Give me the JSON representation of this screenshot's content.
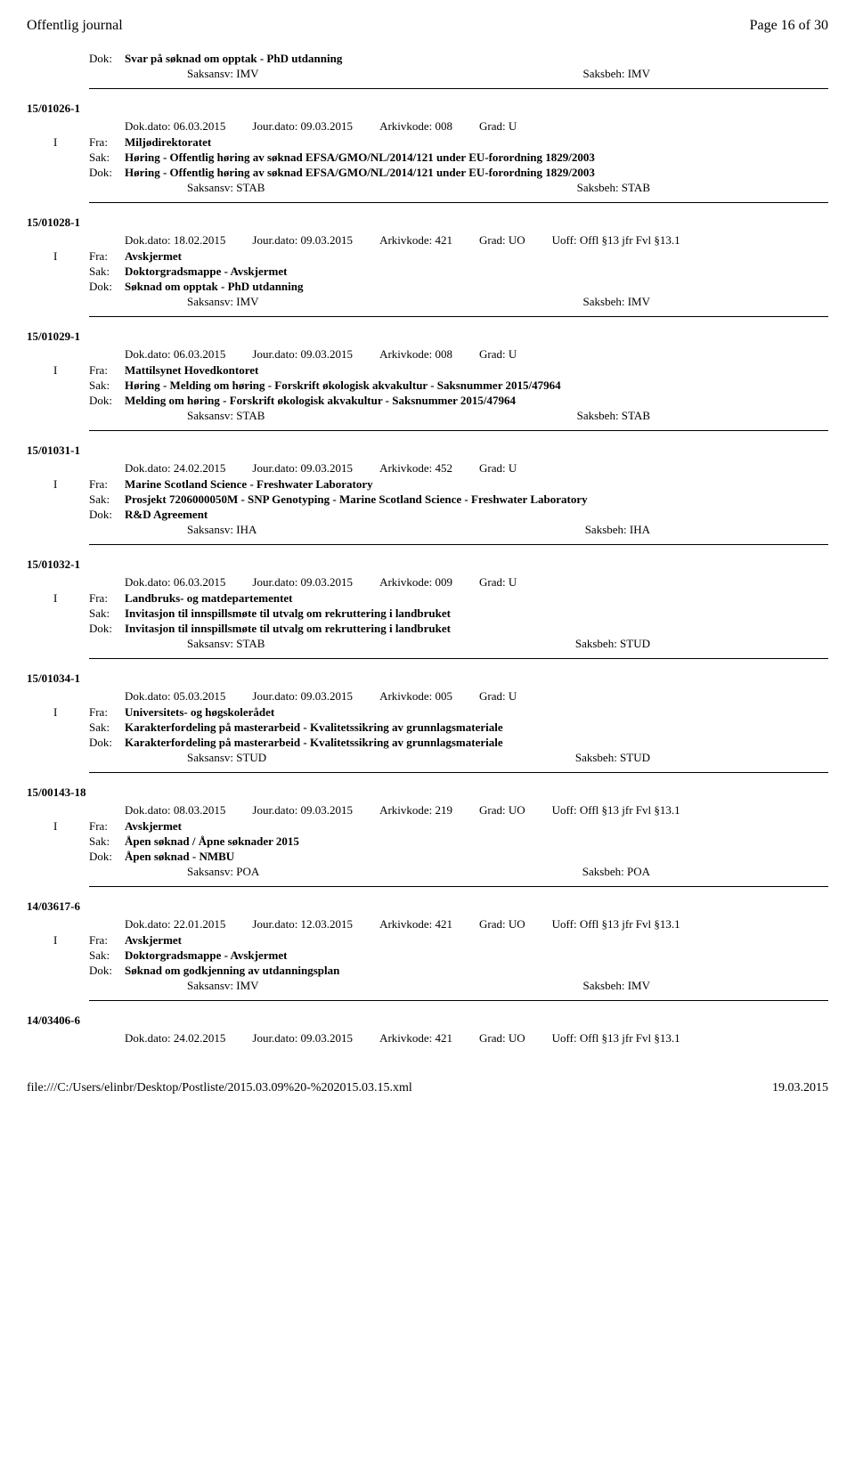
{
  "header": {
    "left": "Offentlig journal",
    "right": "Page 16 of 30"
  },
  "labels": {
    "dok": "Dok:",
    "sak": "Sak:",
    "fra": "Fra:",
    "saksansv": "Saksansv:",
    "saksbeh": "Saksbeh:",
    "dokdato": "Dok.dato:",
    "jourdato": "Jour.dato:",
    "arkivkode": "Arkivkode:",
    "grad": "Grad:",
    "uoff": "Uoff:"
  },
  "first": {
    "dok": "Svar på søknad om opptak - PhD utdanning",
    "saksansv": "IMV",
    "saksbeh": "IMV"
  },
  "records": [
    {
      "ref": "15/01026-1",
      "io": "I",
      "dokdato": "06.03.2015",
      "jourdato": "09.03.2015",
      "arkivkode": "008",
      "grad": "U",
      "uoff": "",
      "fra": "Miljødirektoratet",
      "sak": "Høring - Offentlig høring av søknad EFSA/GMO/NL/2014/121 under EU-forordning 1829/2003",
      "dok": "Høring - Offentlig høring av søknad EFSA/GMO/NL/2014/121 under EU-forordning 1829/2003",
      "saksansv": "STAB",
      "saksbeh": "STAB"
    },
    {
      "ref": "15/01028-1",
      "io": "I",
      "dokdato": "18.02.2015",
      "jourdato": "09.03.2015",
      "arkivkode": "421",
      "grad": "UO",
      "uoff": "Offl §13 jfr Fvl §13.1",
      "fra": "Avskjermet",
      "sak": "Doktorgradsmappe - Avskjermet",
      "dok": "Søknad om opptak - PhD utdanning",
      "saksansv": "IMV",
      "saksbeh": "IMV"
    },
    {
      "ref": "15/01029-1",
      "io": "I",
      "dokdato": "06.03.2015",
      "jourdato": "09.03.2015",
      "arkivkode": "008",
      "grad": "U",
      "uoff": "",
      "fra": "Mattilsynet Hovedkontoret",
      "sak": "Høring - Melding om høring - Forskrift økologisk akvakultur - Saksnummer 2015/47964",
      "dok": "Melding om høring - Forskrift økologisk akvakultur - Saksnummer 2015/47964",
      "saksansv": "STAB",
      "saksbeh": "STAB"
    },
    {
      "ref": "15/01031-1",
      "io": "I",
      "dokdato": "24.02.2015",
      "jourdato": "09.03.2015",
      "arkivkode": "452",
      "grad": "U",
      "uoff": "",
      "fra": "Marine Scotland Science - Freshwater Laboratory",
      "sak": "Prosjekt 7206000050M - SNP Genotyping - Marine Scotland Science - Freshwater Laboratory",
      "dok": "R&D Agreement",
      "saksansv": "IHA",
      "saksbeh": "IHA"
    },
    {
      "ref": "15/01032-1",
      "io": "I",
      "dokdato": "06.03.2015",
      "jourdato": "09.03.2015",
      "arkivkode": "009",
      "grad": "U",
      "uoff": "",
      "fra": "Landbruks- og matdepartementet",
      "sak": "Invitasjon til innspillsmøte til utvalg om rekruttering i landbruket",
      "dok": "Invitasjon til innspillsmøte til utvalg om rekruttering i landbruket",
      "saksansv": "STAB",
      "saksbeh": "STUD"
    },
    {
      "ref": "15/01034-1",
      "io": "I",
      "dokdato": "05.03.2015",
      "jourdato": "09.03.2015",
      "arkivkode": "005",
      "grad": "U",
      "uoff": "",
      "fra": "Universitets- og høgskolerådet",
      "sak": "Karakterfordeling på masterarbeid - Kvalitetssikring av grunnlagsmateriale",
      "dok": "Karakterfordeling på masterarbeid - Kvalitetssikring av grunnlagsmateriale",
      "saksansv": "STUD",
      "saksbeh": "STUD"
    },
    {
      "ref": "15/00143-18",
      "io": "I",
      "dokdato": "08.03.2015",
      "jourdato": "09.03.2015",
      "arkivkode": "219",
      "grad": "UO",
      "uoff": "Offl §13 jfr Fvl §13.1",
      "fra": "Avskjermet",
      "sak": "Åpen søknad / Åpne søknader 2015",
      "dok": "Åpen søknad - NMBU",
      "saksansv": "POA",
      "saksbeh": "POA"
    },
    {
      "ref": "14/03617-6",
      "io": "I",
      "dokdato": "22.01.2015",
      "jourdato": "12.03.2015",
      "arkivkode": "421",
      "grad": "UO",
      "uoff": "Offl §13 jfr Fvl §13.1",
      "fra": "Avskjermet",
      "sak": "Doktorgradsmappe - Avskjermet",
      "dok": "Søknad om godkjenning av utdanningsplan",
      "saksansv": "IMV",
      "saksbeh": "IMV"
    },
    {
      "ref": "14/03406-6",
      "io": "",
      "dokdato": "24.02.2015",
      "jourdato": "09.03.2015",
      "arkivkode": "421",
      "grad": "UO",
      "uoff": "Offl §13 jfr Fvl §13.1",
      "fra": "",
      "sak": "",
      "dok": "",
      "saksansv": "",
      "saksbeh": "",
      "metaOnly": true
    }
  ],
  "footer": {
    "left": "file:///C:/Users/elinbr/Desktop/Postliste/2015.03.09%20-%202015.03.15.xml",
    "right": "19.03.2015"
  }
}
